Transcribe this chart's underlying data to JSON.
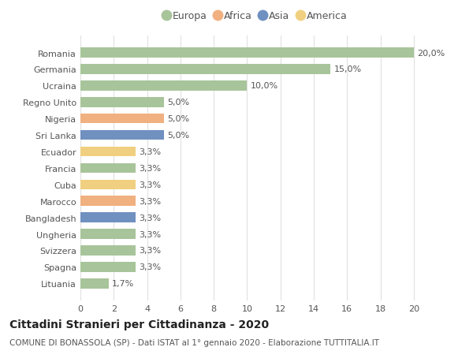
{
  "countries": [
    "Romania",
    "Germania",
    "Ucraina",
    "Regno Unito",
    "Nigeria",
    "Sri Lanka",
    "Ecuador",
    "Francia",
    "Cuba",
    "Marocco",
    "Bangladesh",
    "Ungheria",
    "Svizzera",
    "Spagna",
    "Lituania"
  ],
  "values": [
    20.0,
    15.0,
    10.0,
    5.0,
    5.0,
    5.0,
    3.3,
    3.3,
    3.3,
    3.3,
    3.3,
    3.3,
    3.3,
    3.3,
    1.7
  ],
  "continents": [
    "Europa",
    "Europa",
    "Europa",
    "Europa",
    "Africa",
    "Asia",
    "America",
    "Europa",
    "America",
    "Africa",
    "Asia",
    "Europa",
    "Europa",
    "Europa",
    "Europa"
  ],
  "continent_colors": {
    "Europa": "#a8c49a",
    "Africa": "#f0b080",
    "Asia": "#7090c0",
    "America": "#f0d080"
  },
  "legend_order": [
    "Europa",
    "Africa",
    "Asia",
    "America"
  ],
  "labels": [
    "20,0%",
    "15,0%",
    "10,0%",
    "5,0%",
    "5,0%",
    "5,0%",
    "3,3%",
    "3,3%",
    "3,3%",
    "3,3%",
    "3,3%",
    "3,3%",
    "3,3%",
    "3,3%",
    "1,7%"
  ],
  "xlim": [
    0,
    21
  ],
  "xticks": [
    0,
    2,
    4,
    6,
    8,
    10,
    12,
    14,
    16,
    18,
    20
  ],
  "title": "Cittadini Stranieri per Cittadinanza - 2020",
  "subtitle": "COMUNE DI BONASSOLA (SP) - Dati ISTAT al 1° gennaio 2020 - Elaborazione TUTTITALIA.IT",
  "background_color": "#ffffff",
  "grid_color": "#e0e0e0",
  "bar_height": 0.6,
  "title_fontsize": 10,
  "subtitle_fontsize": 7.5,
  "tick_fontsize": 8,
  "label_fontsize": 8,
  "legend_fontsize": 9
}
